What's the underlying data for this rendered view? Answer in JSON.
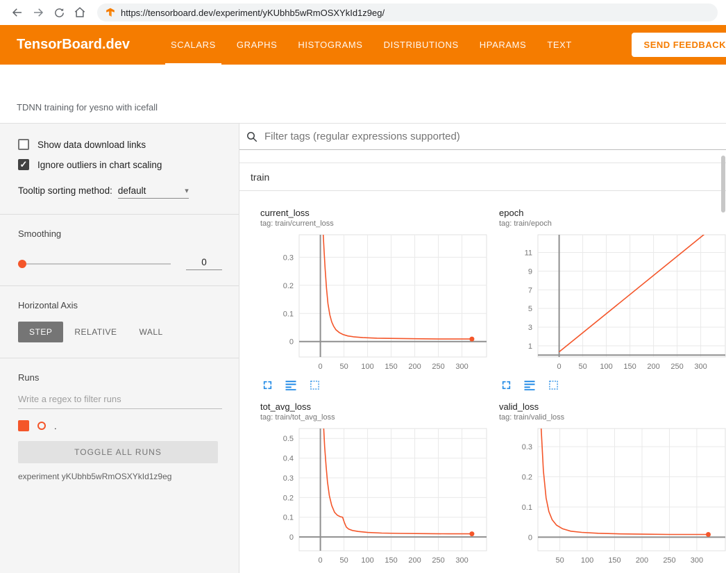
{
  "browser": {
    "url": "https://tensorboard.dev/experiment/yKUbhb5wRmOSXYkId1z9eg/"
  },
  "header": {
    "brand": "TensorBoard.dev",
    "accent_color": "#f57c00",
    "tabs": [
      {
        "label": "SCALARS",
        "active": true
      },
      {
        "label": "GRAPHS",
        "active": false
      },
      {
        "label": "HISTOGRAMS",
        "active": false
      },
      {
        "label": "DISTRIBUTIONS",
        "active": false
      },
      {
        "label": "HPARAMS",
        "active": false
      },
      {
        "label": "TEXT",
        "active": false
      }
    ],
    "feedback_label": "SEND FEEDBACK"
  },
  "experiment_title": "TDNN training for yesno with icefall",
  "sidebar": {
    "show_download_label": "Show data download links",
    "show_download_checked": false,
    "ignore_outliers_label": "Ignore outliers in chart scaling",
    "ignore_outliers_checked": true,
    "tooltip_sorting_label": "Tooltip sorting method:",
    "tooltip_sorting_value": "default",
    "smoothing_label": "Smoothing",
    "smoothing_value": "0",
    "horizontal_axis_label": "Horizontal Axis",
    "axis_options": [
      {
        "label": "STEP",
        "selected": true
      },
      {
        "label": "RELATIVE",
        "selected": false
      },
      {
        "label": "WALL",
        "selected": false
      }
    ],
    "runs_label": "Runs",
    "runs_filter_placeholder": "Write a regex to filter runs",
    "run_item": {
      "name": ".",
      "checked": true,
      "color": "#f4562a"
    },
    "toggle_all_label": "TOGGLE ALL RUNS",
    "experiment_caption": "experiment yKUbhb5wRmOSXYkId1z9eg"
  },
  "main": {
    "filter_placeholder": "Filter tags (regular expressions supported)",
    "section_title": "train"
  },
  "chart_data": [
    {
      "type": "line",
      "title": "current_loss",
      "tag": "tag: train/current_loss",
      "xdomain": [
        -45,
        352
      ],
      "ydomain": [
        -0.055,
        0.38
      ],
      "xticks": [
        0,
        50,
        100,
        150,
        200,
        250,
        300
      ],
      "yticks": [
        0,
        0.1,
        0.2,
        0.3
      ],
      "series": [
        {
          "name": ".",
          "color": "#f4562a",
          "x": [
            6,
            8,
            10,
            13,
            16,
            20,
            24,
            28,
            33,
            40,
            48,
            58,
            70,
            90,
            120,
            160,
            200,
            250,
            300,
            321
          ],
          "y": [
            0.38,
            0.32,
            0.26,
            0.19,
            0.135,
            0.095,
            0.07,
            0.055,
            0.042,
            0.032,
            0.025,
            0.02,
            0.017,
            0.014,
            0.012,
            0.011,
            0.01,
            0.009,
            0.009,
            0.009
          ]
        }
      ],
      "end_dot": [
        321,
        0.009
      ]
    },
    {
      "type": "line",
      "title": "epoch",
      "tag": "tag: train/epoch",
      "xdomain": [
        -45,
        352
      ],
      "ydomain": [
        -0.2,
        12.9
      ],
      "xticks": [
        0,
        50,
        100,
        150,
        200,
        250,
        300
      ],
      "yticks": [
        1,
        3,
        5,
        7,
        9,
        11
      ],
      "series": [
        {
          "name": ".",
          "color": "#f4562a",
          "x": [
            0,
            321
          ],
          "y": [
            0.35,
            13.5
          ]
        }
      ],
      "end_dot": null
    },
    {
      "type": "line",
      "title": "tot_avg_loss",
      "tag": "tag: train/tot_avg_loss",
      "xdomain": [
        -45,
        352
      ],
      "ydomain": [
        -0.07,
        0.55
      ],
      "xticks": [
        0,
        50,
        100,
        150,
        200,
        250,
        300
      ],
      "yticks": [
        0,
        0.1,
        0.2,
        0.3,
        0.4,
        0.5
      ],
      "series": [
        {
          "name": ".",
          "color": "#f4562a",
          "x": [
            7,
            9,
            12,
            15,
            19,
            24,
            30,
            36,
            42,
            47,
            51,
            55,
            60,
            68,
            80,
            100,
            130,
            170,
            220,
            270,
            321
          ],
          "y": [
            0.55,
            0.46,
            0.36,
            0.28,
            0.21,
            0.16,
            0.125,
            0.11,
            0.103,
            0.1,
            0.072,
            0.05,
            0.04,
            0.033,
            0.028,
            0.023,
            0.02,
            0.018,
            0.017,
            0.016,
            0.016
          ]
        }
      ],
      "end_dot": [
        321,
        0.016
      ]
    },
    {
      "type": "line",
      "title": "valid_loss",
      "tag": "tag: train/valid_loss",
      "xdomain": [
        10,
        352
      ],
      "ydomain": [
        -0.045,
        0.36
      ],
      "xticks": [
        50,
        100,
        150,
        200,
        250,
        300
      ],
      "yticks": [
        0,
        0.1,
        0.2,
        0.3
      ],
      "series": [
        {
          "name": ".",
          "color": "#f4562a",
          "x": [
            16,
            20,
            25,
            30,
            36,
            44,
            55,
            70,
            90,
            120,
            160,
            200,
            250,
            300,
            321
          ],
          "y": [
            0.36,
            0.22,
            0.13,
            0.085,
            0.058,
            0.04,
            0.028,
            0.02,
            0.016,
            0.013,
            0.011,
            0.01,
            0.009,
            0.009,
            0.009
          ]
        }
      ],
      "end_dot": [
        321,
        0.009
      ]
    }
  ]
}
